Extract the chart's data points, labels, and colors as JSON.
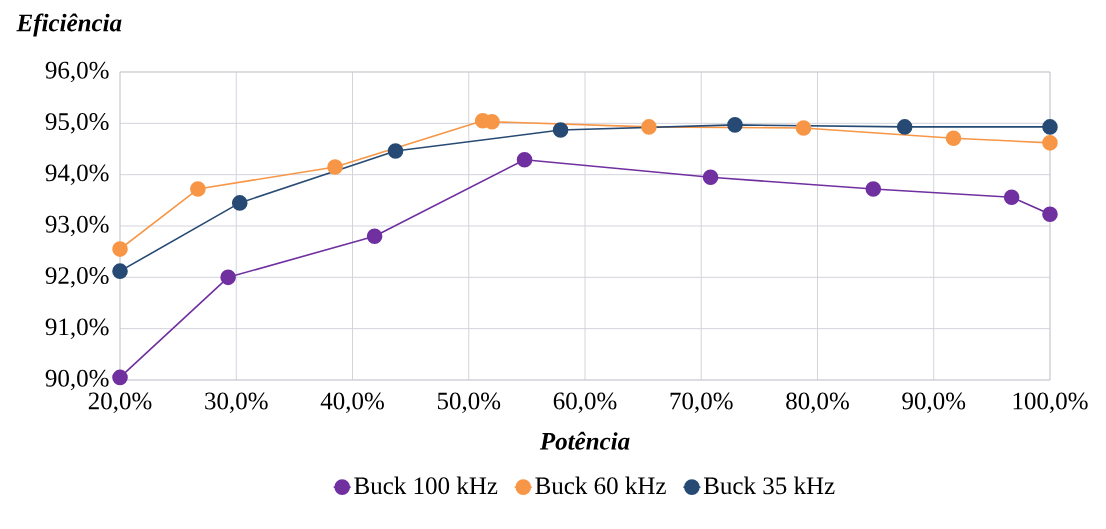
{
  "chart_data": {
    "type": "line",
    "ylabel": "Eficiência",
    "xlabel": "Potência",
    "xlim": [
      20,
      100
    ],
    "ylim": [
      90,
      96
    ],
    "xticks": [
      {
        "value": 20,
        "label": "20,0%"
      },
      {
        "value": 30,
        "label": "30,0%"
      },
      {
        "value": 40,
        "label": "40,0%"
      },
      {
        "value": 50,
        "label": "50,0%"
      },
      {
        "value": 60,
        "label": "60,0%"
      },
      {
        "value": 70,
        "label": "70,0%"
      },
      {
        "value": 80,
        "label": "80,0%"
      },
      {
        "value": 90,
        "label": "90,0%"
      },
      {
        "value": 100,
        "label": "100,0%"
      }
    ],
    "yticks": [
      {
        "value": 90,
        "label": "90,0%"
      },
      {
        "value": 91,
        "label": "91,0%"
      },
      {
        "value": 92,
        "label": "92,0%"
      },
      {
        "value": 93,
        "label": "93,0%"
      },
      {
        "value": 94,
        "label": "94,0%"
      },
      {
        "value": 95,
        "label": "95,0%"
      },
      {
        "value": 96,
        "label": "96,0%"
      }
    ],
    "grid": true,
    "legend": "bottom",
    "marker": "circle",
    "line_style": "solid",
    "series": [
      {
        "name": "Buck 100 kHz",
        "color": "#7030a0",
        "x": [
          20,
          29.3,
          41.9,
          54.8,
          70.8,
          84.8,
          96.7,
          100
        ],
        "values": [
          90.05,
          92.0,
          92.8,
          94.29,
          93.95,
          93.72,
          93.56,
          93.23
        ]
      },
      {
        "name": "Buck 60 kHz",
        "color": "#f79646",
        "x": [
          20,
          26.7,
          38.5,
          51.2,
          52.0,
          65.5,
          78.8,
          91.7,
          100
        ],
        "values": [
          92.55,
          93.72,
          94.15,
          95.05,
          95.03,
          94.93,
          94.91,
          94.71,
          94.62
        ]
      },
      {
        "name": "Buck 35 kHz",
        "color": "#264a73",
        "x": [
          20,
          30.3,
          43.7,
          57.9,
          72.9,
          87.5,
          100
        ],
        "values": [
          92.12,
          93.45,
          94.46,
          94.87,
          94.97,
          94.93,
          94.93
        ]
      }
    ]
  }
}
